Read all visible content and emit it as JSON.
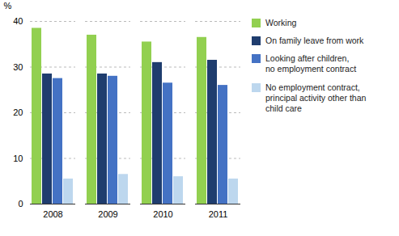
{
  "chart_data": {
    "type": "bar",
    "categories": [
      "2008",
      "2009",
      "2010",
      "2011"
    ],
    "series": [
      {
        "name": "Working",
        "color": "#92d050",
        "values": [
          38.5,
          37.0,
          35.5,
          36.5
        ]
      },
      {
        "name": "On family leave from work",
        "color": "#1f3d6e",
        "values": [
          28.5,
          28.5,
          31.0,
          31.5
        ]
      },
      {
        "name": "Looking after children,\nno employment contract",
        "color": "#4472c4",
        "values": [
          27.5,
          28.0,
          26.5,
          26.0
        ]
      },
      {
        "name": "No employment contract,\nprincipal activity other than\nchild care",
        "color": "#bdd7ee",
        "values": [
          5.5,
          6.5,
          6.0,
          5.5
        ]
      }
    ],
    "y_label": "%",
    "ylim": [
      0,
      40
    ],
    "yticks": [
      0,
      10,
      20,
      30,
      40
    ],
    "grid": true,
    "legend": "right"
  }
}
